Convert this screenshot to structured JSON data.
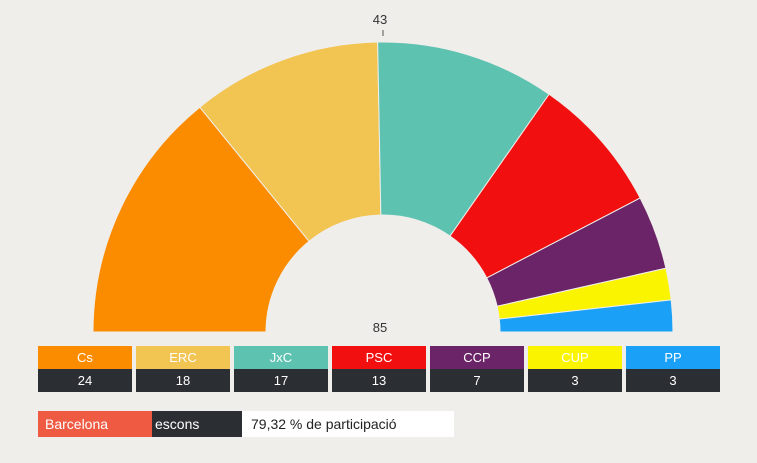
{
  "chart_data": {
    "type": "pie",
    "variant": "semicircle-parliament",
    "majority_label": "43",
    "total_label": "85",
    "parties": [
      {
        "name": "Cs",
        "seats": 24,
        "color": "#fb8c00"
      },
      {
        "name": "ERC",
        "seats": 18,
        "color": "#f2c451"
      },
      {
        "name": "JxC",
        "seats": 17,
        "color": "#5ec2b1"
      },
      {
        "name": "PSC",
        "seats": 13,
        "color": "#f20f10"
      },
      {
        "name": "CCP",
        "seats": 7,
        "color": "#6c2468"
      },
      {
        "name": "CUP",
        "seats": 3,
        "color": "#fbf400"
      },
      {
        "name": "PP",
        "seats": 3,
        "color": "#1aa0f6"
      }
    ]
  },
  "info": {
    "region": "Barcelona",
    "unit": "escons",
    "turnout": "79,32 % de participació"
  },
  "colors": {
    "background": "#efeeea",
    "dark": "#2b2e33",
    "region_accent": "#ef5a43"
  }
}
